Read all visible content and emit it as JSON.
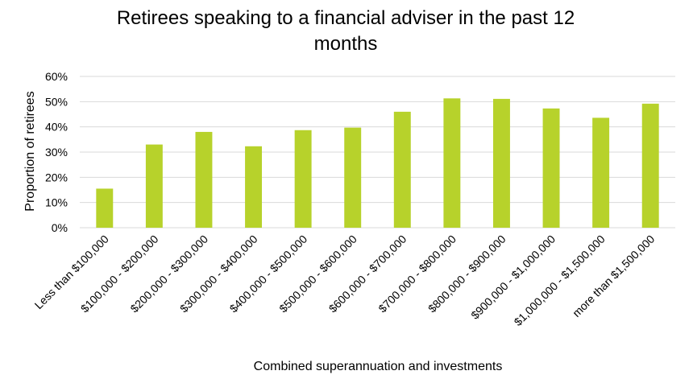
{
  "chart_data": {
    "type": "bar",
    "title_lines": [
      "Retirees speaking to a financial adviser in the past 12",
      "months"
    ],
    "xlabel": "Combined superannuation and investments",
    "ylabel": "Proportion of retirees",
    "ylim": [
      0,
      60
    ],
    "yticks": [
      "0%",
      "10%",
      "20%",
      "30%",
      "40%",
      "50%",
      "60%"
    ],
    "grid": true,
    "bar_color": "#b7d22b",
    "categories": [
      "Less than $100,000",
      "$100,000 - $200,000",
      "$200,000 - $300,000",
      "$300,000 - $400,000",
      "$400,000 - $500,000",
      "$500,000 - $600,000",
      "$600,000 - $700,000",
      "$700,000 - $800,000",
      "$800,000 - $900,000",
      "$900,000 - $1,000,000",
      "$1,000,000 - $1,500,000",
      "more than $1,500,000"
    ],
    "values": [
      15.5,
      33,
      38,
      32.3,
      38.7,
      39.7,
      46,
      51.3,
      51.1,
      47.3,
      43.6,
      49.2
    ]
  }
}
